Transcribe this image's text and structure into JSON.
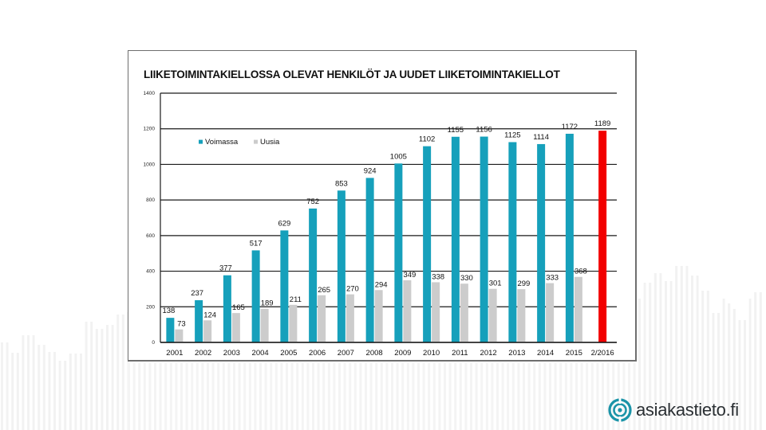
{
  "chart_data": {
    "type": "bar",
    "title": "LIIKETOIMINTAKIELLOSSA OLEVAT HENKILÖT JA UUDET LIIKETOIMINTAKIELLOT",
    "xlabel": "",
    "ylabel": "",
    "ylim": [
      0,
      1400
    ],
    "yticks": [
      0,
      200,
      400,
      600,
      800,
      1000,
      1200,
      1400
    ],
    "grid": true,
    "legend_position": "upper-left",
    "categories": [
      "2001",
      "2002",
      "2003",
      "2004",
      "2005",
      "2006",
      "2007",
      "2008",
      "2009",
      "2010",
      "2011",
      "2012",
      "2013",
      "2014",
      "2015",
      "2/2016"
    ],
    "series": [
      {
        "name": "Voimassa",
        "color": "#16a0bb",
        "values": [
          138,
          237,
          377,
          517,
          629,
          752,
          853,
          924,
          1005,
          1102,
          1155,
          1156,
          1125,
          1114,
          1172,
          1189
        ],
        "highlight": {
          "category": "2/2016",
          "color": "#f20000"
        }
      },
      {
        "name": "Uusia",
        "color": "#cccccc",
        "values": [
          73,
          124,
          165,
          189,
          211,
          265,
          270,
          294,
          349,
          338,
          330,
          301,
          299,
          333,
          368,
          null
        ]
      }
    ]
  },
  "brand": {
    "logo_text": "asiakastieto.fi",
    "logo_color": "#1b94a8",
    "icon": "target-circle-icon"
  }
}
